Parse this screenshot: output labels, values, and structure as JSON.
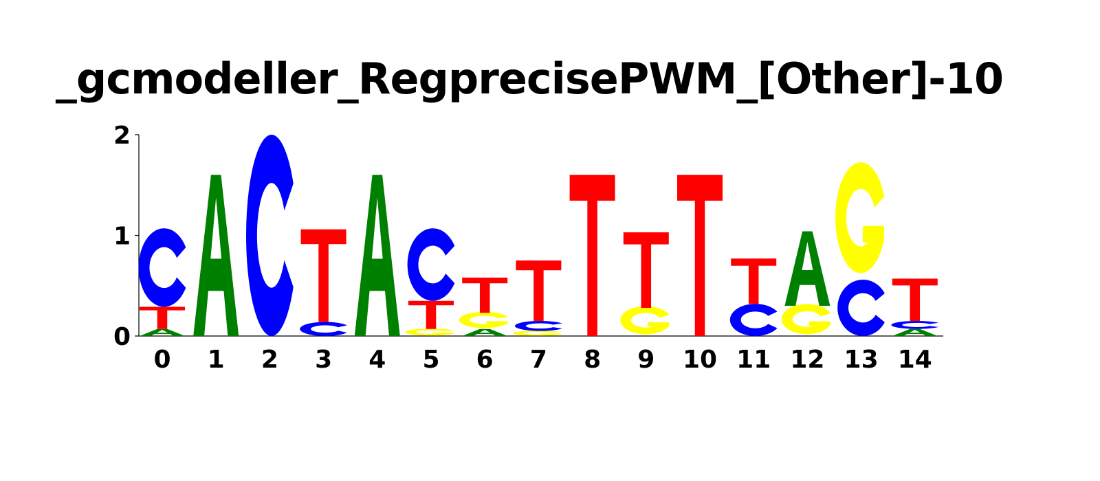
{
  "title": "_gcmodeller_RegprecisePWM_[Other]-10",
  "chart_data": {
    "type": "sequence-logo",
    "title": "_gcmodeller_RegprecisePWM_[Other]-10",
    "xlabel": "",
    "ylabel": "",
    "ylim": [
      0,
      2
    ],
    "yticks": [
      "0",
      "1",
      "2"
    ],
    "xticks": [
      "0",
      "1",
      "2",
      "3",
      "4",
      "5",
      "6",
      "7",
      "8",
      "9",
      "10",
      "11",
      "12",
      "13",
      "14"
    ],
    "grid": false,
    "colors": {
      "A": "#008000",
      "C": "#0000ff",
      "G": "#ffff00",
      "T": "#ff0000"
    },
    "positions": [
      {
        "pos": 0,
        "letters": [
          {
            "base": "A",
            "height": 0.07
          },
          {
            "base": "T",
            "height": 0.22
          },
          {
            "base": "C",
            "height": 0.78
          }
        ]
      },
      {
        "pos": 1,
        "letters": [
          {
            "base": "A",
            "height": 1.6
          }
        ]
      },
      {
        "pos": 2,
        "letters": [
          {
            "base": "C",
            "height": 2.0
          }
        ]
      },
      {
        "pos": 3,
        "letters": [
          {
            "base": "C",
            "height": 0.14
          },
          {
            "base": "T",
            "height": 0.92
          }
        ]
      },
      {
        "pos": 4,
        "letters": [
          {
            "base": "A",
            "height": 1.6
          }
        ]
      },
      {
        "pos": 5,
        "letters": [
          {
            "base": "G",
            "height": 0.07
          },
          {
            "base": "T",
            "height": 0.28
          },
          {
            "base": "C",
            "height": 0.72
          }
        ]
      },
      {
        "pos": 6,
        "letters": [
          {
            "base": "A",
            "height": 0.07
          },
          {
            "base": "G",
            "height": 0.16
          },
          {
            "base": "T",
            "height": 0.35
          }
        ]
      },
      {
        "pos": 7,
        "letters": [
          {
            "base": "G",
            "height": 0.05
          },
          {
            "base": "C",
            "height": 0.1
          },
          {
            "base": "T",
            "height": 0.6
          }
        ]
      },
      {
        "pos": 8,
        "letters": [
          {
            "base": "T",
            "height": 1.6
          }
        ]
      },
      {
        "pos": 9,
        "letters": [
          {
            "base": "G",
            "height": 0.28
          },
          {
            "base": "T",
            "height": 0.75
          }
        ]
      },
      {
        "pos": 10,
        "letters": [
          {
            "base": "T",
            "height": 1.6
          }
        ]
      },
      {
        "pos": 11,
        "letters": [
          {
            "base": "C",
            "height": 0.32
          },
          {
            "base": "T",
            "height": 0.45
          }
        ]
      },
      {
        "pos": 12,
        "letters": [
          {
            "base": "G",
            "height": 0.3
          },
          {
            "base": "A",
            "height": 0.74
          }
        ]
      },
      {
        "pos": 13,
        "letters": [
          {
            "base": "C",
            "height": 0.56
          },
          {
            "base": "G",
            "height": 1.1
          }
        ]
      },
      {
        "pos": 14,
        "letters": [
          {
            "base": "A",
            "height": 0.07
          },
          {
            "base": "C",
            "height": 0.08
          },
          {
            "base": "T",
            "height": 0.42
          }
        ]
      }
    ]
  }
}
